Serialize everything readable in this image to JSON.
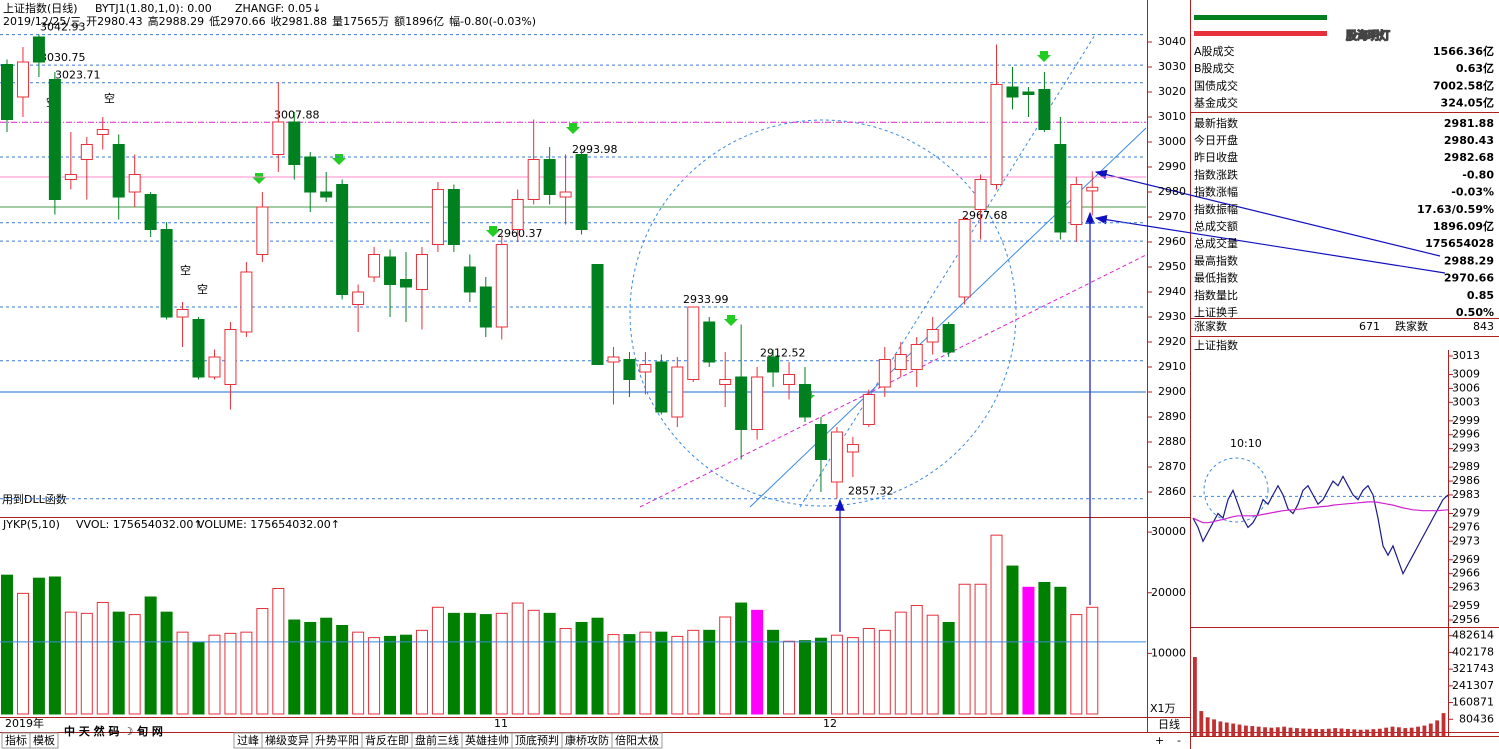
{
  "header": {
    "name": "上证指数(日线)",
    "indicator": "BYTJ1(1.80,1,0)",
    "zero": ": 0.00",
    "zhangf": "ZHANGF: 0.05↓",
    "info": [
      "2019/12/25/三",
      "开2980.43",
      "高2988.29",
      "低2970.66",
      "收2981.88",
      "量17565万",
      "额1896亿",
      "幅-0.80(-0.03%)"
    ]
  },
  "annotations": [
    "空",
    "空",
    "空",
    "空",
    "用到DLL函数"
  ],
  "x_labels": [
    "2019年",
    "11",
    "12"
  ],
  "chart_data": [
    {
      "type": "candlestick",
      "up_color": "#e8303a",
      "down_color": "#00801e",
      "open": [
        3031,
        3018,
        3042,
        3025,
        2985,
        2993,
        3003,
        2999,
        2980,
        2979,
        2965,
        2930,
        2929,
        2906,
        2903,
        2924,
        2955,
        2995,
        3008,
        2994,
        2980,
        2983,
        2935,
        2946,
        2954,
        2945,
        2941,
        2959,
        2981,
        2950,
        2942,
        2926,
        2965,
        2977,
        2993,
        2978,
        2995,
        2951,
        2912,
        2913,
        2908,
        2912,
        2890,
        2905,
        2928,
        2903,
        2906,
        2885,
        2914,
        2903,
        2903,
        2887,
        2864,
        2876,
        2887,
        2902,
        2909,
        2909,
        2920,
        2927,
        2938,
        2973,
        2983,
        3022,
        3020,
        3021,
        2999,
        2967,
        2980.43
      ],
      "high": [
        3033,
        3038,
        3043,
        3028,
        3004,
        3002,
        3010,
        3003,
        2995,
        2980,
        2968,
        2936,
        2930,
        2917,
        2928,
        2952,
        2980,
        3024,
        3012,
        2996,
        2988,
        2985,
        2943,
        2958,
        2957,
        2956,
        2958,
        2984,
        2983,
        2955,
        2946,
        2963,
        2981,
        3009,
        2998,
        2995,
        2997,
        2951,
        2918,
        2916,
        2916,
        2915,
        2914,
        2934,
        2930,
        2916,
        2927,
        2910,
        2917,
        2912,
        2910,
        2890,
        2886,
        2882,
        2901,
        2918,
        2920,
        2922,
        2930,
        2928,
        2970,
        2987,
        3039,
        3030,
        3022,
        3028,
        3010,
        2986,
        2988.29
      ],
      "low": [
        3004,
        3010,
        3026,
        2971,
        2981,
        2977,
        2997,
        2969,
        2974,
        2962,
        2929,
        2918,
        2905,
        2905,
        2893,
        2922,
        2952,
        2988,
        2985,
        2972,
        2976,
        2937,
        2924,
        2944,
        2930,
        2928,
        2925,
        2956,
        2956,
        2936,
        2922,
        2921,
        2960,
        2975,
        2975,
        2967,
        2963,
        2911,
        2895,
        2898,
        2899,
        2891,
        2886,
        2904,
        2910,
        2894,
        2873,
        2881,
        2902,
        2897,
        2888,
        2860,
        2857.32,
        2866,
        2886,
        2898,
        2906,
        2902,
        2915,
        2914,
        2935,
        2961,
        2981,
        3013,
        3010,
        3004,
        2961,
        2960,
        2970.66
      ],
      "close": [
        3009,
        3032,
        3032,
        2977,
        2987,
        2999,
        3005,
        2978,
        2987,
        2965,
        2930,
        2933,
        2906,
        2914,
        2925,
        2948,
        2974,
        3008,
        2991,
        2980,
        2978,
        2939,
        2940,
        2955,
        2943,
        2942,
        2955,
        2981,
        2959,
        2940,
        2926,
        2959,
        2977,
        2993,
        2979,
        2980,
        2965,
        2911,
        2914,
        2905,
        2911,
        2892,
        2910,
        2934,
        2912,
        2905,
        2885,
        2906,
        2908,
        2907,
        2890,
        2873,
        2884,
        2879,
        2899,
        2913,
        2915,
        2919,
        2925,
        2916,
        2969,
        2985,
        3023,
        3018,
        3019,
        3005,
        2964,
        2983,
        2981.88
      ],
      "ylim": [
        2850,
        3044.8
      ],
      "yticks": [
        2860,
        2870,
        2880,
        2890,
        2900,
        2910,
        2920,
        2930,
        2940,
        2950,
        2960,
        2970,
        2980,
        2990,
        3000,
        3010,
        3020,
        3030,
        3040
      ],
      "levels": [
        {
          "value": 3042.93,
          "color": "#3a7ad8"
        },
        {
          "value": 3030.75,
          "color": "#3a7ad8"
        },
        {
          "value": 3023.71,
          "color": "#3a7ad8"
        },
        {
          "value": 3007.88,
          "color": "#e020d0"
        },
        {
          "value": 2993.98,
          "color": "#3a7ad8"
        },
        {
          "value": 2967.68,
          "color": "#3a7ad8"
        },
        {
          "value": 2960.37,
          "color": "#3a7ad8"
        },
        {
          "value": 2933.99,
          "color": "#3a7ad8"
        },
        {
          "value": 2912.52,
          "color": "#3a7ad8"
        },
        {
          "value": 2857.32,
          "color": "#3a7ad8"
        }
      ],
      "reference_lines": [
        {
          "value": 2986,
          "color": "#ff88cc"
        },
        {
          "value": 2974,
          "color": "#4a9a4a"
        },
        {
          "value": 2900,
          "color": "#1a6ad0"
        }
      ]
    },
    {
      "type": "bar",
      "title": "JYKP(5,10)",
      "legend": [
        "VVOL: 175654032.00↑",
        "VOLUME: 175654032.00↑"
      ],
      "unit": "X1万",
      "values": [
        22900,
        19900,
        22400,
        22600,
        16800,
        16600,
        18400,
        16800,
        16400,
        19300,
        16800,
        13500,
        11800,
        13000,
        13300,
        13500,
        17400,
        20700,
        15500,
        15100,
        15800,
        14600,
        13500,
        12600,
        12800,
        13000,
        13800,
        17600,
        16600,
        16600,
        16400,
        16600,
        18300,
        17100,
        16600,
        14100,
        15100,
        15800,
        13100,
        13100,
        13500,
        13500,
        12800,
        13800,
        13800,
        16000,
        18300,
        17100,
        13800,
        12000,
        12100,
        12500,
        13000,
        12600,
        14100,
        13800,
        16800,
        17900,
        16300,
        15100,
        21400,
        21400,
        29500,
        24400,
        20900,
        21700,
        20900,
        16400,
        17600
      ],
      "colors": [
        "#008000",
        "#e8303a",
        "#008000",
        "#008000",
        "#e8303a",
        "#e8303a",
        "#e8303a",
        "#008000",
        "#e8303a",
        "#008000",
        "#008000",
        "#e8303a",
        "#008000",
        "#e8303a",
        "#e8303a",
        "#e8303a",
        "#e8303a",
        "#e8303a",
        "#008000",
        "#008000",
        "#008000",
        "#008000",
        "#e8303a",
        "#e8303a",
        "#008000",
        "#008000",
        "#e8303a",
        "#e8303a",
        "#008000",
        "#008000",
        "#008000",
        "#e8303a",
        "#e8303a",
        "#e8303a",
        "#008000",
        "#e8303a",
        "#008000",
        "#008000",
        "#e8303a",
        "#008000",
        "#e8303a",
        "#008000",
        "#e8303a",
        "#e8303a",
        "#008000",
        "#e8303a",
        "#008000",
        "#ff00ff",
        "#008000",
        "#e8303a",
        "#008000",
        "#008000",
        "#e8303a",
        "#e8303a",
        "#e8303a",
        "#e8303a",
        "#e8303a",
        "#e8303a",
        "#e8303a",
        "#008000",
        "#e8303a",
        "#e8303a",
        "#e8303a",
        "#008000",
        "#ff00ff",
        "#008000",
        "#008000",
        "#e8303a",
        "#e8303a"
      ],
      "hollow_color": "#e8303a",
      "reference_lines": [
        11900
      ],
      "ylim": [
        0,
        32000
      ],
      "yticks": [
        10000,
        20000,
        30000
      ]
    },
    {
      "type": "line",
      "title": "上证指数",
      "annotation": "10:10",
      "base": 2982.68,
      "ylim": [
        2956,
        3013
      ],
      "yticks": [
        3013,
        3009,
        3006,
        3003,
        2999,
        2996,
        2993,
        2989,
        2986,
        2983,
        2979,
        2976,
        2973,
        2969,
        2966,
        2963,
        2959,
        2956
      ],
      "series": [
        {
          "color": "#1a1a8a",
          "values": [
            2978,
            2976,
            2973,
            2975,
            2977,
            2979,
            2978,
            2982,
            2984,
            2981,
            2978,
            2976,
            2977,
            2979,
            2982,
            2981,
            2983,
            2985,
            2983,
            2980,
            2979,
            2981,
            2984,
            2985,
            2983,
            2981,
            2982,
            2984,
            2986,
            2985,
            2987,
            2985,
            2983,
            2982,
            2984,
            2985,
            2983,
            2978,
            2972,
            2970,
            2972,
            2969,
            2966,
            2968,
            2970,
            2972,
            2974,
            2976,
            2978,
            2980,
            2982,
            2983
          ]
        },
        {
          "color": "#d020d0",
          "values": [
            2978,
            2977.5,
            2977,
            2977,
            2977.2,
            2977.5,
            2977.7,
            2978,
            2978.3,
            2978.5,
            2978.5,
            2978.5,
            2978.5,
            2978.6,
            2978.8,
            2979,
            2979.2,
            2979.4,
            2979.6,
            2979.7,
            2979.8,
            2979.9,
            2980,
            2980.2,
            2980.3,
            2980.4,
            2980.5,
            2980.6,
            2980.8,
            2980.9,
            2981,
            2981.1,
            2981.2,
            2981.3,
            2981.4,
            2981.5,
            2981.5,
            2981.4,
            2981.2,
            2981,
            2980.8,
            2980.5,
            2980.2,
            2980,
            2979.8,
            2979.7,
            2979.6,
            2979.6,
            2979.6,
            2979.6,
            2979.7,
            2979.8
          ]
        }
      ]
    },
    {
      "type": "bar",
      "color": "#c03030",
      "ylim": [
        0,
        510000
      ],
      "yticks": [
        482614,
        402178,
        321743,
        241307,
        160871,
        80436
      ],
      "values": [
        380000,
        120000,
        90000,
        80000,
        70000,
        65000,
        60000,
        55000,
        50000,
        48000,
        45000,
        42000,
        40000,
        42000,
        45000,
        40000,
        38000,
        36000,
        35000,
        34000,
        33000,
        35000,
        38000,
        36000,
        34000,
        32000,
        30000,
        31000,
        33000,
        35000,
        40000,
        45000,
        42000,
        38000,
        40000,
        45000,
        50000,
        60000,
        75000,
        110000
      ]
    }
  ],
  "market_panel": {
    "watermark": "股海明灯",
    "rows": [
      [
        "Α股成交",
        "1566.36亿"
      ],
      [
        "Β股成交",
        "0.63亿"
      ],
      [
        "国债成交",
        "7002.58亿"
      ],
      [
        "基金成交",
        "324.05亿"
      ],
      [
        "最新指数",
        "2981.88"
      ],
      [
        "今日开盘",
        "2980.43"
      ],
      [
        "昨日收盘",
        "2982.68"
      ],
      [
        "指数涨跌",
        "-0.80"
      ],
      [
        "指数涨幅",
        "-0.03%"
      ],
      [
        "指数振幅",
        "17.63/0.59%"
      ],
      [
        "总成交额",
        "1896.09亿"
      ],
      [
        "总成交量",
        "175654028"
      ],
      [
        "最高指数",
        "2988.29"
      ],
      [
        "最低指数",
        "2970.66"
      ],
      [
        "指数量比",
        "0.85"
      ],
      [
        "上证换手",
        "0.50%"
      ]
    ],
    "breadth": [
      "涨家数",
      "671",
      "跌家数",
      "843"
    ]
  },
  "tabs": [
    "指标",
    "模板",
    "过峰",
    "梯级变异",
    "升势平阳",
    "背反在即",
    "盘前三线",
    "英雄挂帅",
    "顶底预判",
    "康桥攻防",
    "倍阳太极"
  ],
  "overlay_text": "中 天 然 码 ☽ 旬 网",
  "period": "日线",
  "zoom": [
    "+",
    "-"
  ]
}
